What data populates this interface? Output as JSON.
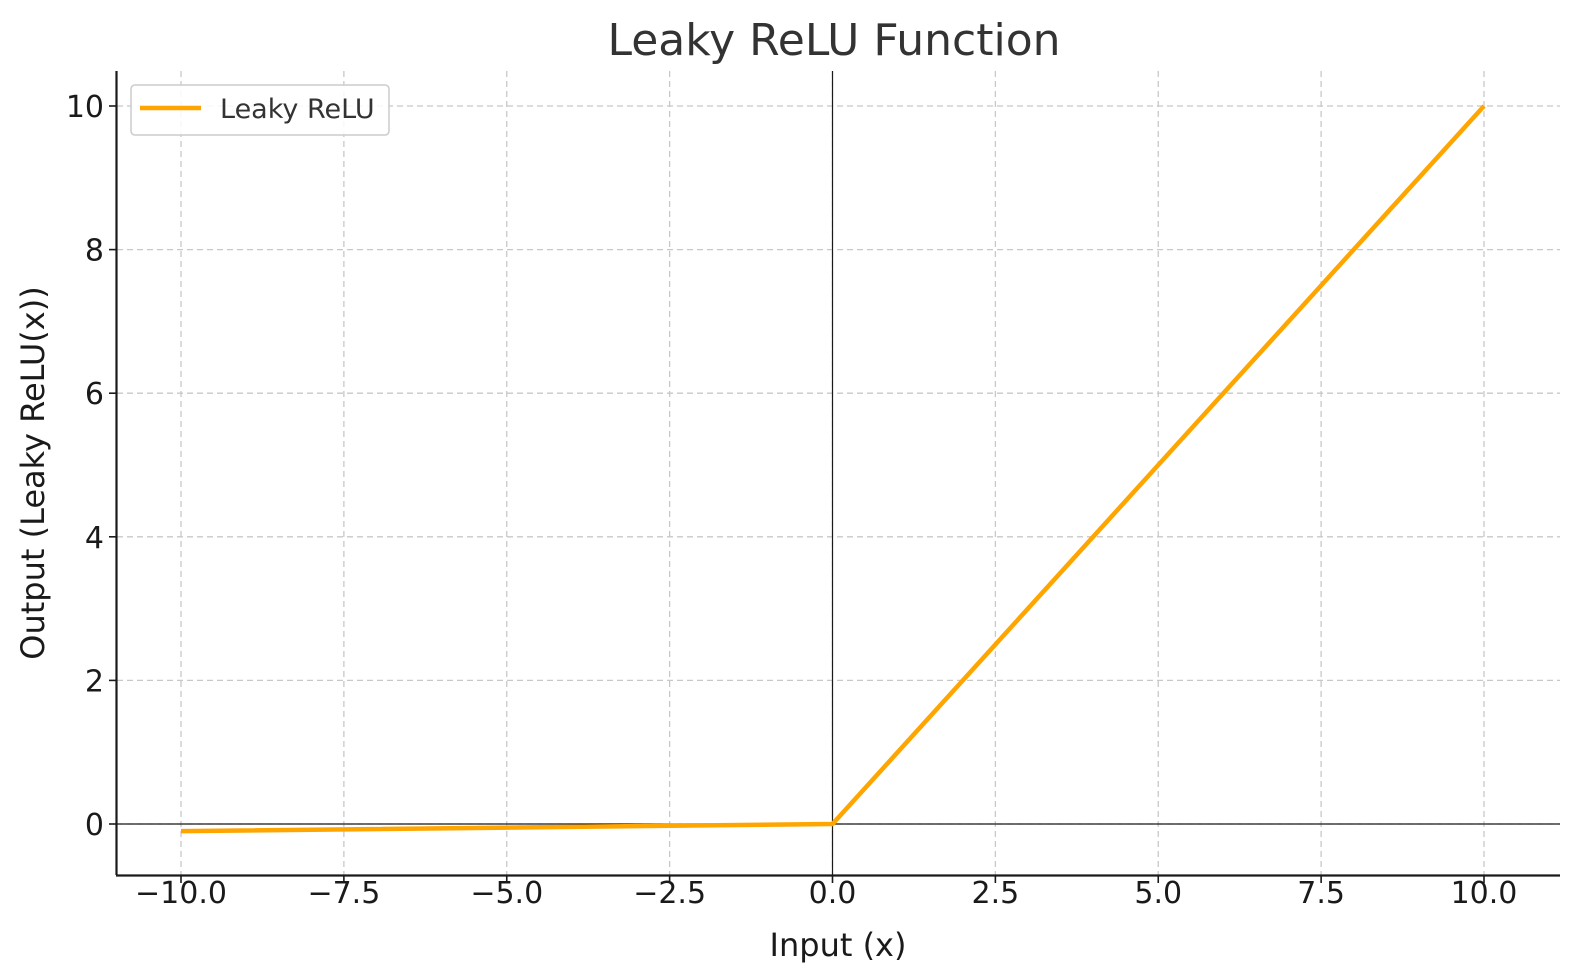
{
  "chart_data": {
    "type": "line",
    "title": "Leaky ReLU Function",
    "xlabel": "Input (x)",
    "ylabel": "Output (Leaky ReLU(x))",
    "xlim": [
      -11,
      11
    ],
    "ylim": [
      -0.6,
      10.5
    ],
    "x_ticks": [
      -10.0,
      -7.5,
      -5.0,
      -2.5,
      0.0,
      2.5,
      5.0,
      7.5,
      10.0
    ],
    "x_tick_labels": [
      "−10.0",
      "−7.5",
      "−5.0",
      "−2.5",
      "0.0",
      "2.5",
      "5.0",
      "7.5",
      "10.0"
    ],
    "y_ticks": [
      0,
      2,
      4,
      6,
      8,
      10
    ],
    "y_tick_labels": [
      "0",
      "2",
      "4",
      "6",
      "8",
      "10"
    ],
    "grid": true,
    "zero_lines": true,
    "legend_position": "top-left",
    "series": [
      {
        "name": "Leaky ReLU",
        "color": "#ffa500",
        "x": [
          -10,
          0,
          10
        ],
        "y": [
          -0.1,
          0,
          10
        ]
      }
    ]
  }
}
